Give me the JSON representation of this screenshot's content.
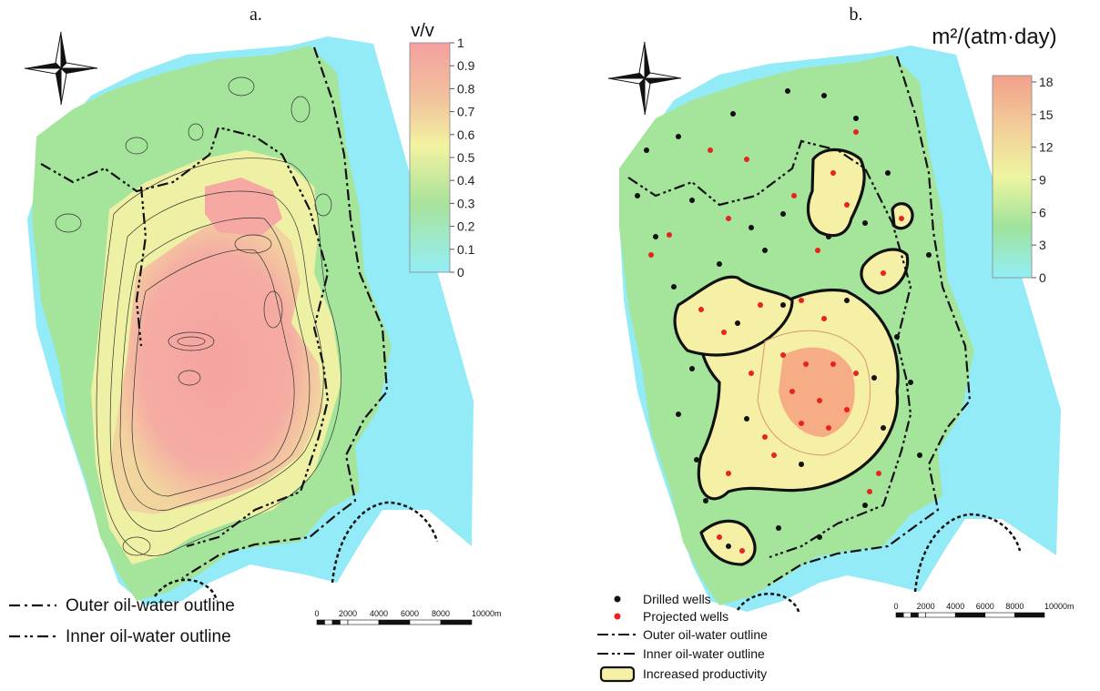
{
  "panel_a": {
    "label": "a.",
    "colorbar": {
      "unit": "v/v",
      "ticks": [
        "1",
        "0.9",
        "0.8",
        "0.7",
        "0.6",
        "0.5",
        "0.4",
        "0.3",
        "0.2",
        "0.1",
        "0"
      ]
    },
    "legend": [
      {
        "style": "dash-dot",
        "label": "Outer oil-water outline"
      },
      {
        "style": "dash-dot-dot",
        "label": "Inner oil-water outline"
      }
    ],
    "scale_bar": {
      "labels": [
        "0",
        "2000",
        "4000",
        "6000",
        "8000",
        "10000m"
      ]
    }
  },
  "panel_b": {
    "label": "b.",
    "colorbar": {
      "unit": "m²/(atm·day)",
      "ticks": [
        "18",
        "15",
        "12",
        "9",
        "6",
        "3",
        "0"
      ]
    },
    "legend": [
      {
        "style": "black-dot",
        "label": "Drilled wells"
      },
      {
        "style": "red-dot",
        "label": "Projected wells"
      },
      {
        "style": "dash-dot",
        "label": "Outer oil-water outline"
      },
      {
        "style": "dash-dot-dot",
        "label": "Inner oil-water outline"
      },
      {
        "style": "box",
        "label": "Increased productivity"
      }
    ],
    "scale_bar": {
      "labels": [
        "0",
        "2000",
        "4000",
        "6000",
        "8000",
        "10000m"
      ]
    }
  },
  "colors": {
    "water": "#92ebf6",
    "low": "#9fe29d",
    "mid": "#eef3a1",
    "high": "#f5a9a2",
    "drilled_well": "#111111",
    "projected_well": "#e8221d",
    "productivity_fill": "#f6f0a6"
  },
  "icons": [
    "compass-rose-icon",
    "fault-hatch-icon"
  ]
}
